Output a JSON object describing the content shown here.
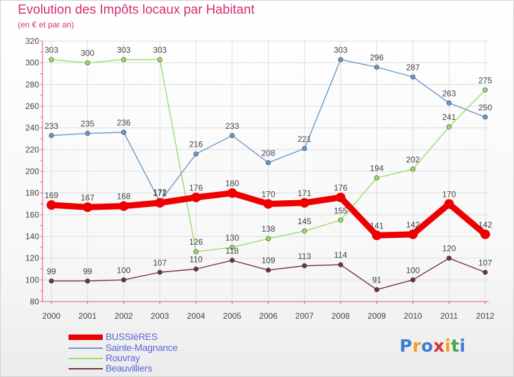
{
  "title": "Evolution des Impôts locaux par Habitant",
  "subtitle": "(en € et par an)",
  "logo": {
    "letters": [
      "P",
      "r",
      "o",
      "x",
      "i",
      "t",
      "i"
    ],
    "colors": [
      "#3b7bd6",
      "#f0a020",
      "#3b7bd6",
      "#e03030",
      "#f0a020",
      "#44a844",
      "#3b7bd6"
    ]
  },
  "chart_data": {
    "type": "line",
    "x": [
      "2000",
      "2001",
      "2002",
      "2003",
      "2004",
      "2005",
      "2006",
      "2007",
      "2008",
      "2009",
      "2010",
      "2011",
      "2012"
    ],
    "ylim": [
      80,
      320
    ],
    "yticks": [
      80,
      100,
      120,
      140,
      160,
      180,
      200,
      220,
      240,
      260,
      280,
      300,
      320
    ],
    "grid": true,
    "series": [
      {
        "key": "bussieres",
        "name": "BUSSIèRES",
        "color": "#ee0000",
        "values": [
          169,
          167,
          168,
          171,
          176,
          180,
          170,
          171,
          176,
          141,
          142,
          170,
          142
        ]
      },
      {
        "key": "sainte_magnance",
        "name": "Sainte-Magnance",
        "color": "#6699cc",
        "values": [
          233,
          235,
          236,
          172,
          216,
          233,
          208,
          221,
          303,
          296,
          287,
          263,
          250
        ]
      },
      {
        "key": "rouvray",
        "name": "Rouvray",
        "color": "#99dd66",
        "values": [
          303,
          300,
          303,
          303,
          126,
          130,
          138,
          145,
          155,
          194,
          202,
          241,
          275
        ]
      },
      {
        "key": "beauvilliers",
        "name": "Beauvilliers",
        "color": "#773333",
        "values": [
          99,
          99,
          100,
          107,
          110,
          118,
          109,
          113,
          114,
          91,
          100,
          120,
          107
        ]
      }
    ]
  }
}
